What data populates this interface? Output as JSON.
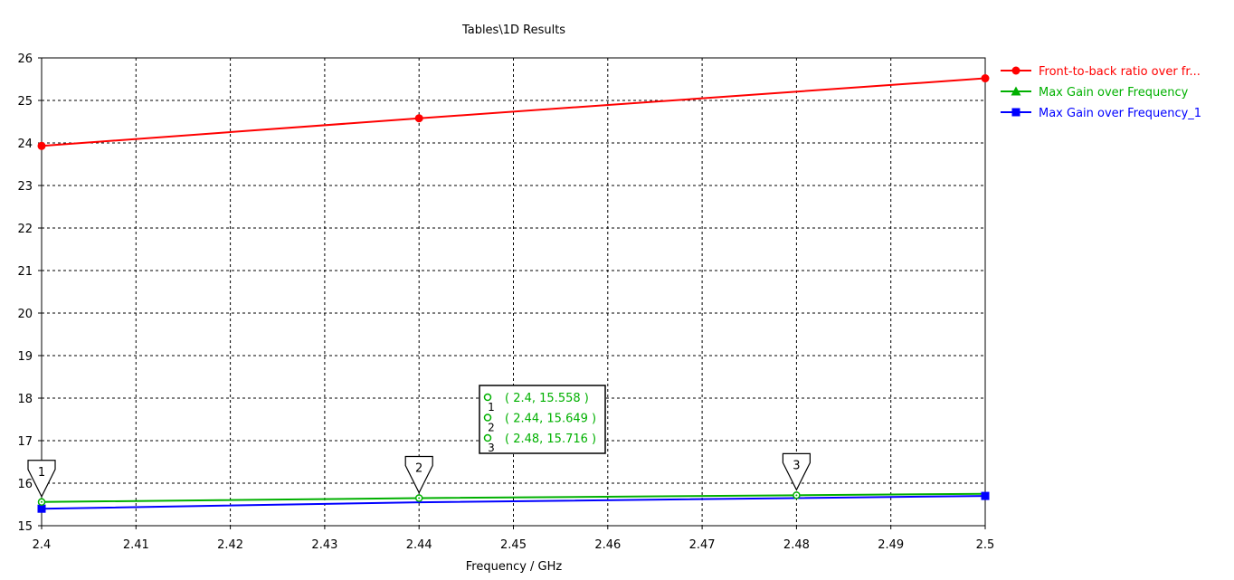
{
  "chart_data": {
    "type": "line",
    "title": "Tables\\1D Results",
    "xlabel": "Frequency / GHz",
    "ylabel": "",
    "xlim": [
      2.4,
      2.5
    ],
    "ylim": [
      15,
      26
    ],
    "xticks": [
      2.4,
      2.41,
      2.42,
      2.43,
      2.44,
      2.45,
      2.46,
      2.47,
      2.48,
      2.49,
      2.5
    ],
    "xtick_labels": [
      "2.4",
      "2.41",
      "2.42",
      "2.43",
      "2.44",
      "2.45",
      "2.46",
      "2.47",
      "2.48",
      "2.49",
      "2.5"
    ],
    "yticks": [
      15,
      16,
      17,
      18,
      19,
      20,
      21,
      22,
      23,
      24,
      25,
      26
    ],
    "ytick_labels": [
      "15",
      "16",
      "17",
      "18",
      "19",
      "20",
      "21",
      "22",
      "23",
      "24",
      "25",
      "26"
    ],
    "grid": true,
    "legend_position": "right",
    "series": [
      {
        "name": "Front-to-back ratio over fr...",
        "color": "#ff0000",
        "marker": "circle",
        "x": [
          2.4,
          2.44,
          2.5
        ],
        "y": [
          23.93,
          24.58,
          25.52
        ]
      },
      {
        "name": "Max Gain over Frequency",
        "color": "#00b000",
        "marker": "triangle",
        "x": [
          2.4,
          2.44,
          2.48,
          2.5
        ],
        "y": [
          15.558,
          15.649,
          15.716,
          15.75
        ]
      },
      {
        "name": "Max Gain over Frequency_1",
        "color": "#0000ff",
        "marker": "square",
        "x": [
          2.4,
          2.44,
          2.5
        ],
        "y": [
          15.4,
          15.55,
          15.7
        ]
      }
    ],
    "markers": [
      {
        "id": "1",
        "x": 2.4,
        "y": 15.558,
        "label": "( 2.4, 15.558 )"
      },
      {
        "id": "2",
        "x": 2.44,
        "y": 15.649,
        "label": "( 2.44, 15.649 )"
      },
      {
        "id": "3",
        "x": 2.48,
        "y": 15.716,
        "label": "( 2.48, 15.716 )"
      }
    ],
    "marker_color": "#00b000"
  }
}
